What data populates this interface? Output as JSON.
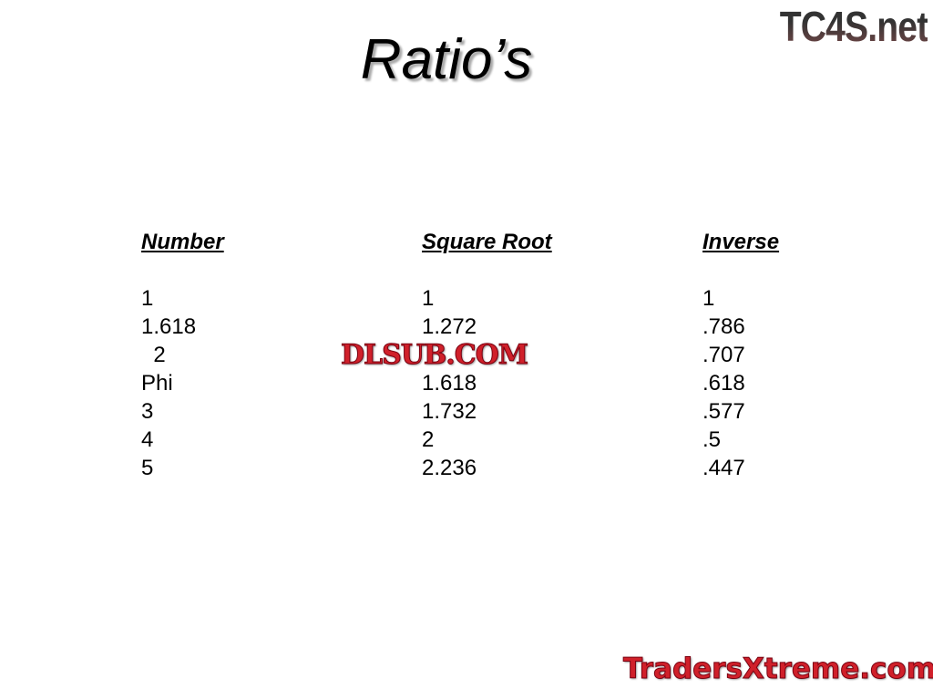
{
  "title": "Ratio’s",
  "logos": {
    "top_right": "TC4S.net",
    "center_watermark": "DLSUB.COM",
    "bottom_right": "TradersXtreme.com"
  },
  "columns": [
    {
      "header": "Number",
      "values": [
        "1",
        "1.618",
        "  2",
        "Phi",
        "3",
        "4",
        "5"
      ]
    },
    {
      "header": "Square Root",
      "values": [
        "1",
        "1.272",
        "",
        "1.618",
        "1.732",
        "2",
        "2.236"
      ]
    },
    {
      "header": "Inverse",
      "values": [
        "1",
        ".786",
        ".707",
        ".618",
        ".577",
        ".5",
        ".447"
      ]
    }
  ]
}
